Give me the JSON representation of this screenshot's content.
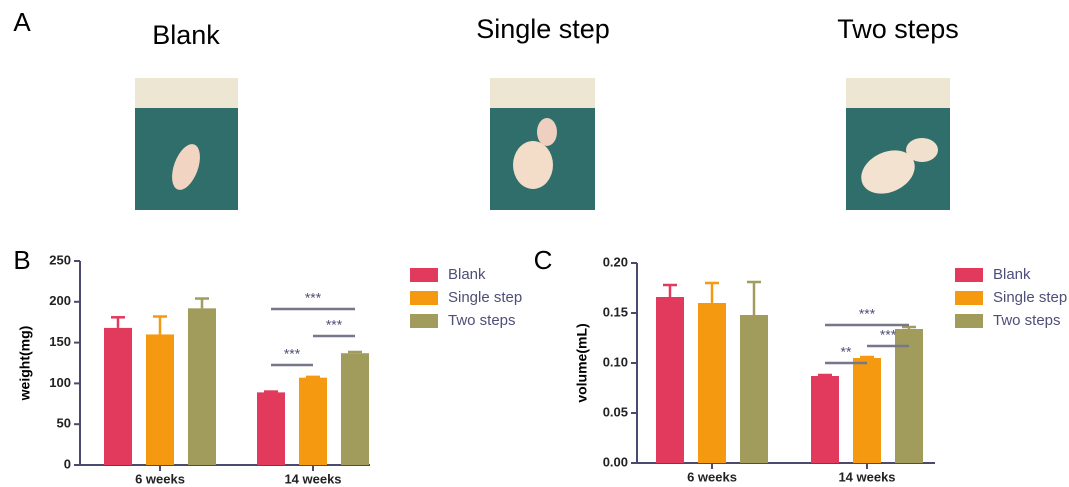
{
  "panel_a": {
    "label": "A",
    "photos": [
      "Blank",
      "Single step",
      "Two steps"
    ]
  },
  "chart_data": [
    {
      "type": "bar",
      "panel_label": "B",
      "ylabel": "weight(mg)",
      "categories": [
        "6 weeks",
        "14 weeks"
      ],
      "ylim": [
        0,
        250
      ],
      "yticks": [
        0,
        50,
        100,
        150,
        200,
        250
      ],
      "series": [
        {
          "name": "Blank",
          "color": "#e23a5c",
          "values": [
            168,
            89
          ],
          "errors": [
            13,
            1
          ]
        },
        {
          "name": "Single step",
          "color": "#f59a10",
          "values": [
            160,
            107
          ],
          "errors": [
            22,
            1
          ]
        },
        {
          "name": "Two steps",
          "color": "#a29c5c",
          "values": [
            192,
            137
          ],
          "errors": [
            12,
            1.5
          ]
        }
      ],
      "annotations": [
        "***",
        "***",
        "***"
      ]
    },
    {
      "type": "bar",
      "panel_label": "C",
      "ylabel": "volume(mL)",
      "categories": [
        "6 weeks",
        "14 weeks"
      ],
      "ylim": [
        0,
        0.2
      ],
      "yticks": [
        {
          "value": 0,
          "label": "0.00"
        },
        {
          "value": 0.05,
          "label": "0.05"
        },
        {
          "value": 0.1,
          "label": "0.10"
        },
        {
          "value": 0.15,
          "label": "0.15"
        },
        {
          "value": 0.2,
          "label": "0.20"
        }
      ],
      "series": [
        {
          "name": "Blank",
          "color": "#e23a5c",
          "values": [
            0.166,
            0.087
          ],
          "errors": [
            0.012,
            0.001
          ]
        },
        {
          "name": "Single step",
          "color": "#f59a10",
          "values": [
            0.16,
            0.105
          ],
          "errors": [
            0.02,
            0.001
          ]
        },
        {
          "name": "Two steps",
          "color": "#a29c5c",
          "values": [
            0.148,
            0.134
          ],
          "errors": [
            0.033,
            0.002
          ]
        }
      ],
      "annotations": [
        "**",
        "***",
        "***"
      ]
    }
  ]
}
